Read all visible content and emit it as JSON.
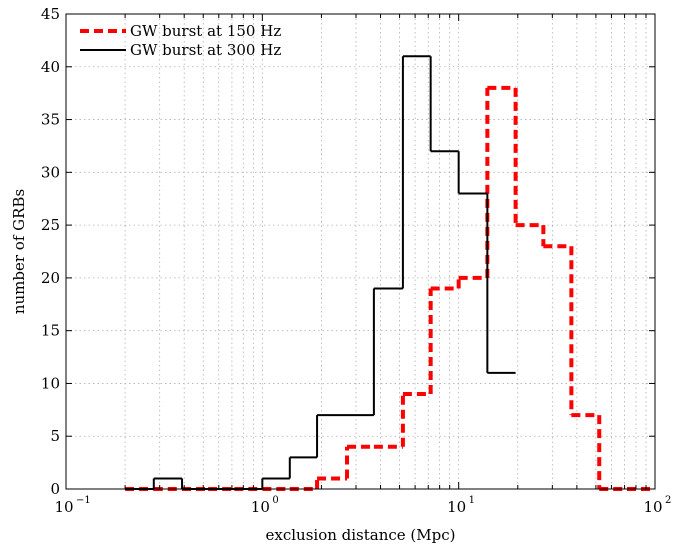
{
  "chart_data": {
    "type": "line",
    "xlabel": "exclusion distance (Mpc)",
    "ylabel": "number of GRBs",
    "xscale": "log",
    "xlim": [
      0.1,
      100
    ],
    "ylim": [
      0,
      45
    ],
    "grid": true,
    "legend_position": "top-left",
    "x_ticks": [
      {
        "value": 0.1,
        "base": "10",
        "exp": "−1"
      },
      {
        "value": 1,
        "base": "10",
        "exp": "0"
      },
      {
        "value": 10,
        "base": "10",
        "exp": "1"
      },
      {
        "value": 100,
        "base": "10",
        "exp": "2"
      }
    ],
    "y_ticks": [
      0,
      5,
      10,
      15,
      20,
      25,
      30,
      35,
      40,
      45
    ],
    "series": [
      {
        "name": "GW burst at 150 Hz",
        "color": "#ff0000",
        "style": "dashed",
        "bin_edges": [
          0.2,
          0.28,
          0.39,
          0.53,
          0.72,
          1.0,
          1.38,
          1.9,
          2.7,
          3.7,
          5.2,
          7.2,
          10,
          14,
          19.5,
          27,
          37.5,
          52,
          72,
          100
        ],
        "counts": [
          0,
          0,
          0,
          0,
          0,
          0,
          0,
          1,
          4,
          4,
          9,
          19,
          20,
          38,
          25,
          23,
          7,
          0,
          0
        ]
      },
      {
        "name": "GW burst at 300 Hz",
        "color": "#000000",
        "style": "solid",
        "bin_edges": [
          0.2,
          0.28,
          0.39,
          0.53,
          0.72,
          1.0,
          1.38,
          1.9,
          2.7,
          3.7,
          5.2,
          7.2,
          10,
          14,
          19.5
        ],
        "counts": [
          0,
          1,
          0,
          0,
          0,
          1,
          3,
          7,
          7,
          19,
          41,
          32,
          28,
          11
        ]
      }
    ]
  }
}
